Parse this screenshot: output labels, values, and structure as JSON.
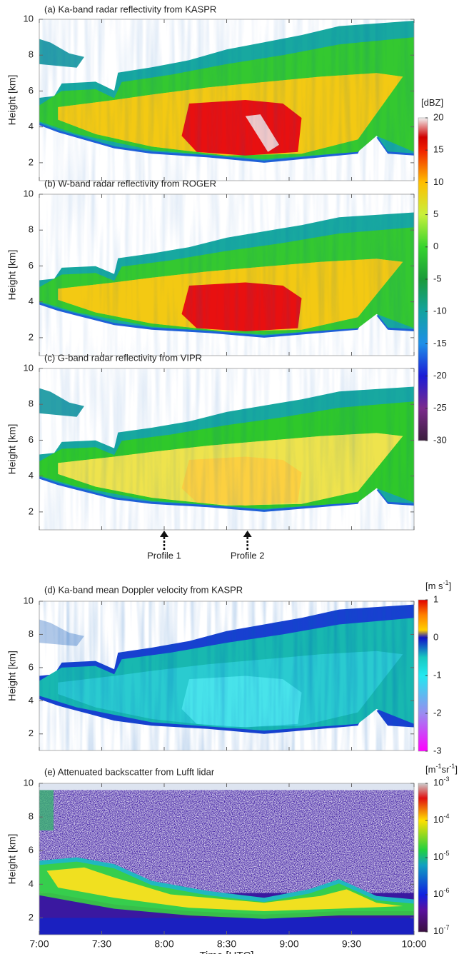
{
  "chart_data": [
    {
      "type": "heatmap",
      "title": "(a) Ka-band radar reflectivity from KASPR",
      "ylabel": "Height [km]",
      "xlim": [
        7,
        10
      ],
      "xticks": [
        7,
        7.5,
        8,
        8.5,
        9,
        9.5,
        10
      ],
      "ylim": [
        1,
        10
      ],
      "yticks": [
        2,
        4,
        6,
        8,
        10
      ],
      "colorbar": {
        "label": [
          "[dBZ]"
        ],
        "clim": [
          -30,
          20
        ],
        "ticks": [
          20,
          15,
          10,
          5,
          0,
          -5,
          -10,
          -15,
          -20,
          -25,
          -30
        ]
      }
    },
    {
      "type": "heatmap",
      "title": "(b) W-band radar reflectivity from ROGER",
      "ylabel": "Height [km]",
      "xlim": [
        7,
        10
      ],
      "xticks": [
        7,
        7.5,
        8,
        8.5,
        9,
        9.5,
        10
      ],
      "ylim": [
        1,
        10
      ],
      "yticks": [
        2,
        4,
        6,
        8,
        10
      ]
    },
    {
      "type": "heatmap",
      "title": "(c) G-band radar reflectivity from VIPR",
      "ylabel": "Height [km]",
      "xlim": [
        7,
        10
      ],
      "xticks": [
        7,
        7.5,
        8,
        8.5,
        9,
        9.5,
        10
      ],
      "ylim": [
        1,
        10
      ],
      "yticks": [
        2,
        4,
        6,
        8,
        10
      ],
      "annotations": [
        {
          "text": "Profile 1",
          "x": 8
        },
        {
          "text": "Profile 2",
          "x": 8.6667
        }
      ]
    },
    {
      "type": "heatmap",
      "title": "(d) Ka-band mean Doppler velocity from KASPR",
      "ylabel": "Height [km]",
      "xlim": [
        7,
        10
      ],
      "xticks": [
        7,
        7.5,
        8,
        8.5,
        9,
        9.5,
        10
      ],
      "ylim": [
        1,
        10
      ],
      "yticks": [
        2,
        4,
        6,
        8,
        10
      ],
      "colorbar": {
        "label": [
          "[m s",
          "-1",
          "]"
        ],
        "clim": [
          -3,
          1
        ],
        "ticks": [
          1,
          0,
          -1,
          -2,
          -3
        ]
      }
    },
    {
      "type": "heatmap",
      "title": "(e) Attenuated backscatter from Lufft lidar",
      "ylabel": "Height [km]",
      "xlabel": "Time [UTC]",
      "xlim": [
        7,
        10
      ],
      "ylim": [
        1,
        10
      ],
      "yticks": [
        2,
        4,
        6,
        8,
        10
      ],
      "xticks": [
        {
          "value": 7,
          "label": "7:00"
        },
        {
          "value": 7.5,
          "label": "7:30"
        },
        {
          "value": 8,
          "label": "8:00"
        },
        {
          "value": 8.5,
          "label": "8:30"
        },
        {
          "value": 9,
          "label": "9:00"
        },
        {
          "value": 9.5,
          "label": "9:30"
        },
        {
          "value": 10,
          "label": "10:00"
        }
      ],
      "colorbar": {
        "label": [
          "[m",
          "-1",
          "sr",
          "-1",
          "]"
        ],
        "clim": [
          -7,
          -3
        ],
        "log": true,
        "ticks": [
          {
            "value": -3,
            "label": "10",
            "exponent": "-3"
          },
          {
            "value": -4,
            "label": "10",
            "exponent": "-4"
          },
          {
            "value": -5,
            "label": "10",
            "exponent": "-5"
          },
          {
            "value": -6,
            "label": "10",
            "exponent": "-6"
          },
          {
            "value": -7,
            "label": "10",
            "exponent": "-7"
          }
        ]
      }
    }
  ]
}
